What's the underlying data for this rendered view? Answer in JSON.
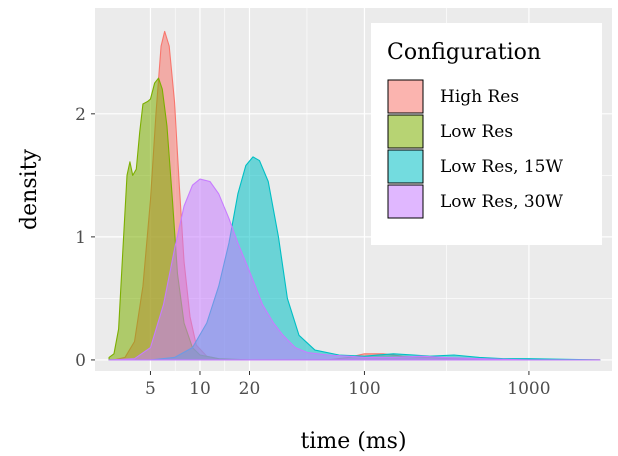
{
  "chart_data": {
    "type": "area",
    "subtype": "density",
    "title": "",
    "xlabel": "time (ms)",
    "ylabel": "density",
    "x_scale": "log10",
    "xlim": [
      2.3,
      3200
    ],
    "ylim": [
      -0.09,
      2.86
    ],
    "x_ticks": [
      5,
      10,
      20,
      100,
      1000
    ],
    "x_tick_labels": [
      "5",
      "10",
      "20",
      "100",
      "1000"
    ],
    "y_ticks": [
      0,
      1,
      2
    ],
    "y_tick_labels": [
      "0",
      "1",
      "2"
    ],
    "grid": true,
    "panel_background": "#ebebeb",
    "legend": {
      "title": "Configuration",
      "position": "top-right-inside"
    },
    "series": [
      {
        "name": "High Res",
        "fill": "#f8766d",
        "stroke": "#f8766d",
        "points": [
          [
            3.0,
            0.0
          ],
          [
            3.5,
            0.02
          ],
          [
            4.0,
            0.15
          ],
          [
            4.5,
            0.6
          ],
          [
            5.0,
            1.3
          ],
          [
            5.4,
            2.0
          ],
          [
            5.8,
            2.55
          ],
          [
            6.1,
            2.67
          ],
          [
            6.5,
            2.55
          ],
          [
            7.0,
            2.1
          ],
          [
            7.5,
            1.4
          ],
          [
            8.0,
            0.8
          ],
          [
            8.7,
            0.35
          ],
          [
            9.5,
            0.12
          ],
          [
            11.0,
            0.03
          ],
          [
            14.0,
            0.0
          ],
          [
            60.0,
            0.0
          ],
          [
            80.0,
            0.02
          ],
          [
            100.0,
            0.05
          ],
          [
            130.0,
            0.05
          ],
          [
            170.0,
            0.03
          ],
          [
            250.0,
            0.02
          ],
          [
            400.0,
            0.01
          ],
          [
            700.0,
            0.0
          ],
          [
            2700.0,
            0.0
          ]
        ]
      },
      {
        "name": "Low Res",
        "fill": "#7cae00",
        "stroke": "#7cae00",
        "points": [
          [
            2.8,
            0.02
          ],
          [
            3.0,
            0.05
          ],
          [
            3.2,
            0.25
          ],
          [
            3.4,
            0.9
          ],
          [
            3.6,
            1.5
          ],
          [
            3.75,
            1.61
          ],
          [
            3.9,
            1.5
          ],
          [
            4.1,
            1.55
          ],
          [
            4.3,
            1.85
          ],
          [
            4.5,
            2.08
          ],
          [
            4.8,
            2.1
          ],
          [
            5.0,
            2.12
          ],
          [
            5.3,
            2.25
          ],
          [
            5.6,
            2.29
          ],
          [
            5.9,
            2.2
          ],
          [
            6.3,
            1.9
          ],
          [
            6.8,
            1.3
          ],
          [
            7.3,
            0.7
          ],
          [
            8.0,
            0.3
          ],
          [
            9.0,
            0.1
          ],
          [
            10.0,
            0.04
          ],
          [
            13.0,
            0.01
          ],
          [
            20.0,
            0.0
          ],
          [
            2700.0,
            0.0
          ]
        ]
      },
      {
        "name": "Low Res, 15W",
        "fill": "#00bfc4",
        "stroke": "#00bfc4",
        "points": [
          [
            2.8,
            0.0
          ],
          [
            5.0,
            0.0
          ],
          [
            7.0,
            0.02
          ],
          [
            9.0,
            0.1
          ],
          [
            11.0,
            0.3
          ],
          [
            13.0,
            0.6
          ],
          [
            15.0,
            0.95
          ],
          [
            17.0,
            1.35
          ],
          [
            19.0,
            1.58
          ],
          [
            21.0,
            1.65
          ],
          [
            23.0,
            1.62
          ],
          [
            26.0,
            1.45
          ],
          [
            30.0,
            1.0
          ],
          [
            34.0,
            0.5
          ],
          [
            40.0,
            0.2
          ],
          [
            50.0,
            0.08
          ],
          [
            70.0,
            0.04
          ],
          [
            100.0,
            0.03
          ],
          [
            150.0,
            0.05
          ],
          [
            200.0,
            0.04
          ],
          [
            250.0,
            0.03
          ],
          [
            350.0,
            0.04
          ],
          [
            500.0,
            0.02
          ],
          [
            700.0,
            0.01
          ],
          [
            1000.0,
            0.01
          ],
          [
            2700.0,
            0.0
          ]
        ]
      },
      {
        "name": "Low Res, 30W",
        "fill": "#c77cff",
        "stroke": "#c77cff",
        "points": [
          [
            2.8,
            0.0
          ],
          [
            4.0,
            0.01
          ],
          [
            5.0,
            0.1
          ],
          [
            6.0,
            0.45
          ],
          [
            7.0,
            0.9
          ],
          [
            8.0,
            1.25
          ],
          [
            9.0,
            1.42
          ],
          [
            10.0,
            1.47
          ],
          [
            11.5,
            1.45
          ],
          [
            13.0,
            1.35
          ],
          [
            15.0,
            1.15
          ],
          [
            17.0,
            0.95
          ],
          [
            20.0,
            0.72
          ],
          [
            24.0,
            0.45
          ],
          [
            28.0,
            0.3
          ],
          [
            32.0,
            0.2
          ],
          [
            38.0,
            0.1
          ],
          [
            45.0,
            0.06
          ],
          [
            60.0,
            0.04
          ],
          [
            80.0,
            0.03
          ],
          [
            100.0,
            0.02
          ],
          [
            150.0,
            0.02
          ],
          [
            220.0,
            0.03
          ],
          [
            300.0,
            0.02
          ],
          [
            500.0,
            0.01
          ],
          [
            1000.0,
            0.0
          ],
          [
            2700.0,
            0.0
          ]
        ]
      }
    ]
  }
}
